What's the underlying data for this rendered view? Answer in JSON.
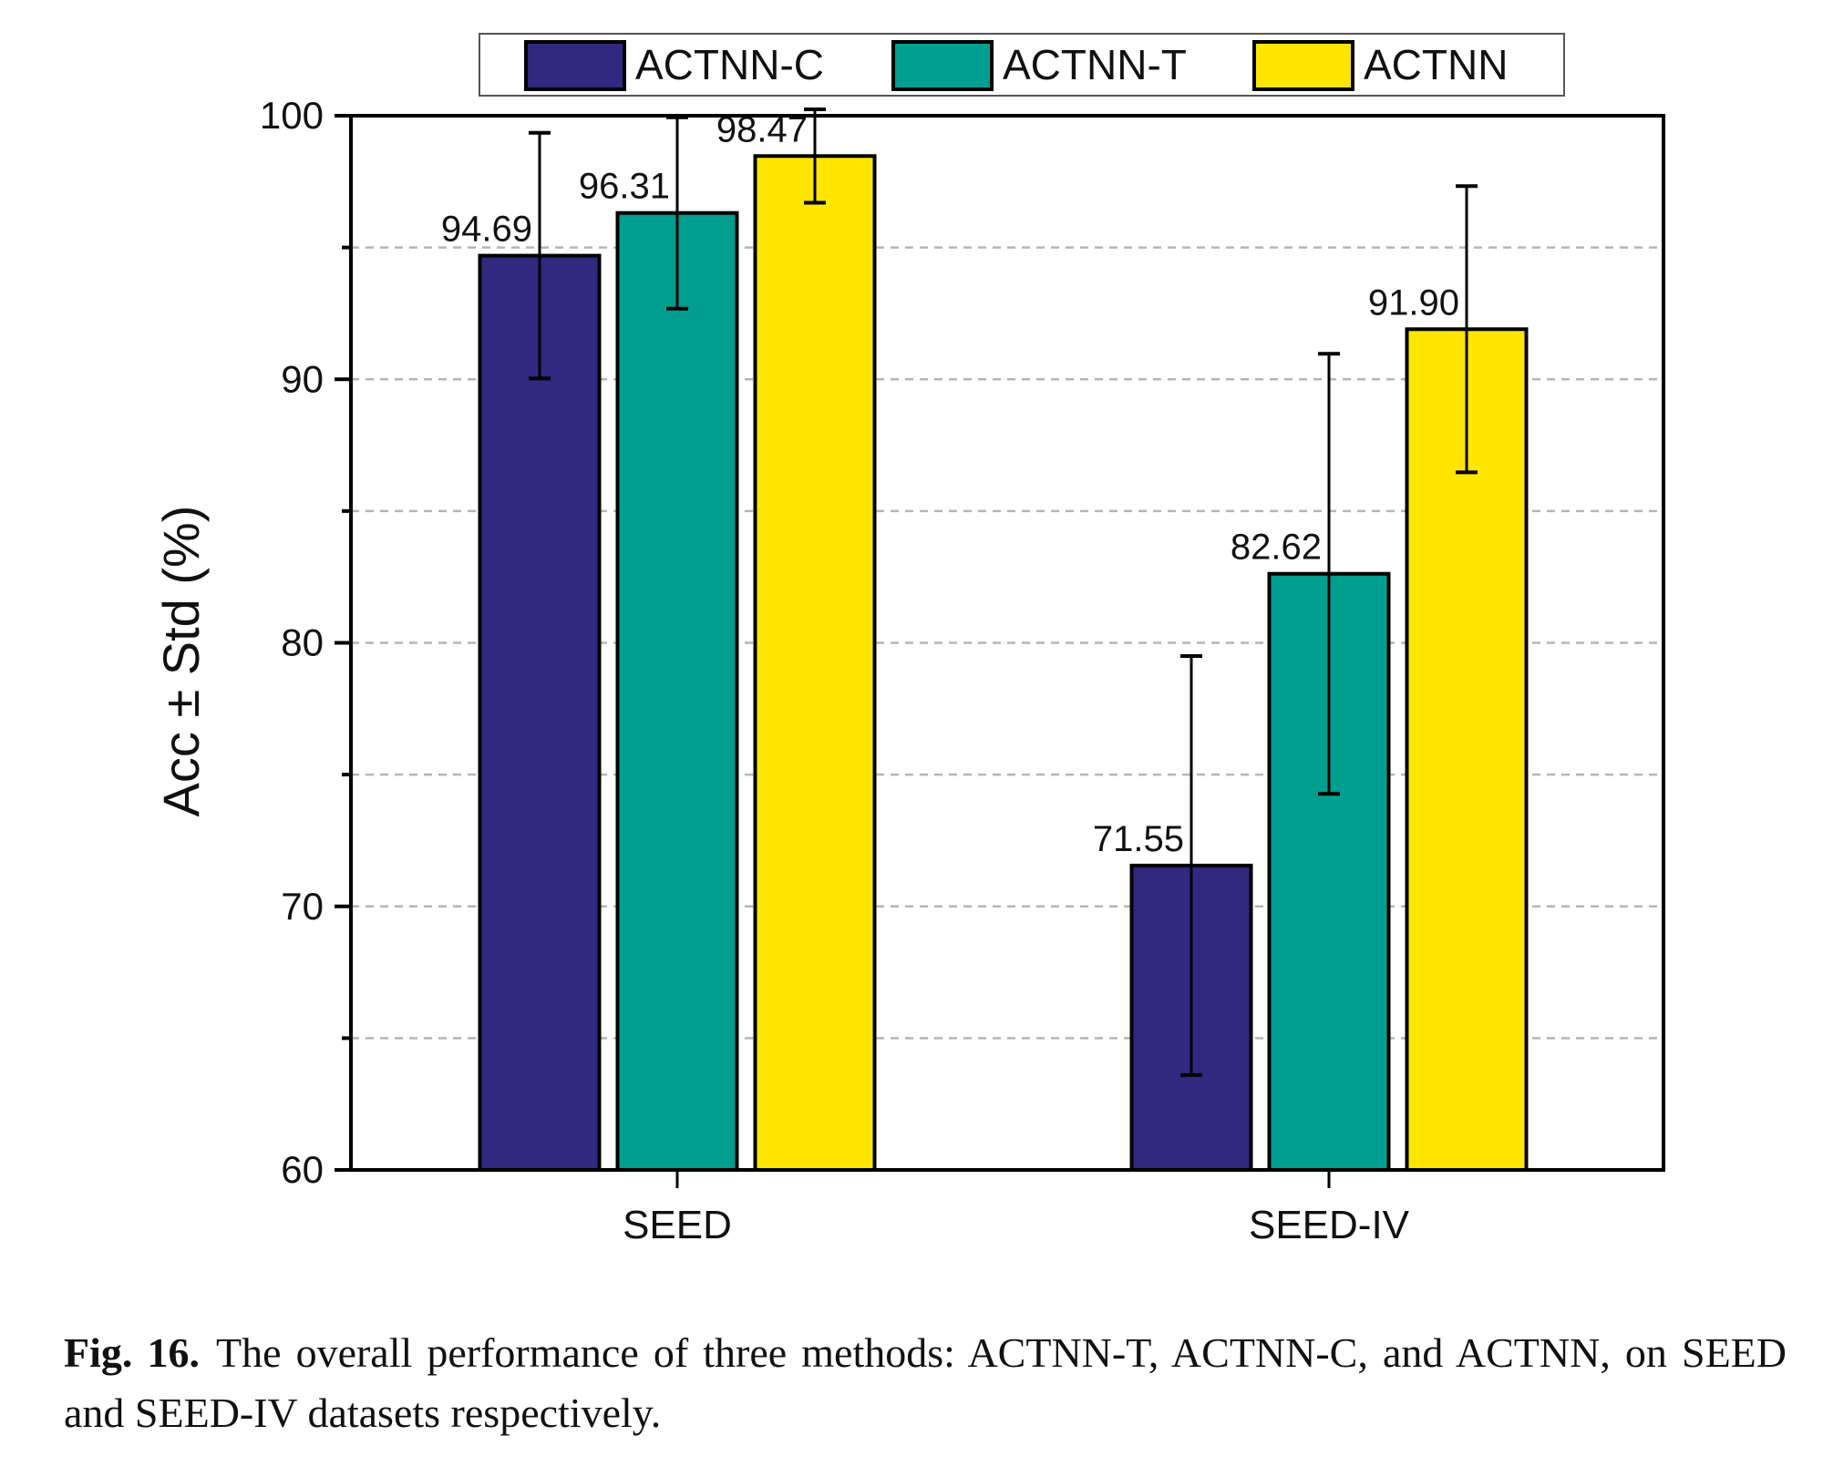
{
  "chart_data": {
    "type": "bar",
    "title": "",
    "xlabel": "",
    "ylabel": "Acc ± Std (%)",
    "ylim": [
      60,
      100
    ],
    "yticks": [
      60,
      70,
      80,
      90,
      100
    ],
    "minor_yticks": [
      65,
      75,
      85,
      95
    ],
    "grid": true,
    "legend_position": "top-center-outside",
    "categories": [
      "SEED",
      "SEED-IV"
    ],
    "series": [
      {
        "name": "ACTNN-C",
        "color": "#312880",
        "values": [
          94.69,
          71.55
        ],
        "std": [
          4.66,
          7.95
        ],
        "labels": [
          "94.69",
          "71.55"
        ]
      },
      {
        "name": "ACTNN-T",
        "color": "#009E8E",
        "values": [
          96.31,
          82.62
        ],
        "std": [
          3.63,
          8.35
        ],
        "labels": [
          "96.31",
          "82.62"
        ]
      },
      {
        "name": "ACTNN",
        "color": "#FFE600",
        "values": [
          98.47,
          91.9
        ],
        "std": [
          1.77,
          5.43
        ],
        "labels": [
          "98.47",
          "91.90"
        ]
      }
    ]
  },
  "caption": {
    "label": "Fig. 16.",
    "text": "The overall performance of three methods: ACTNN-T, ACTNN-C, and ACTNN, on SEED and SEED-IV datasets respectively."
  }
}
